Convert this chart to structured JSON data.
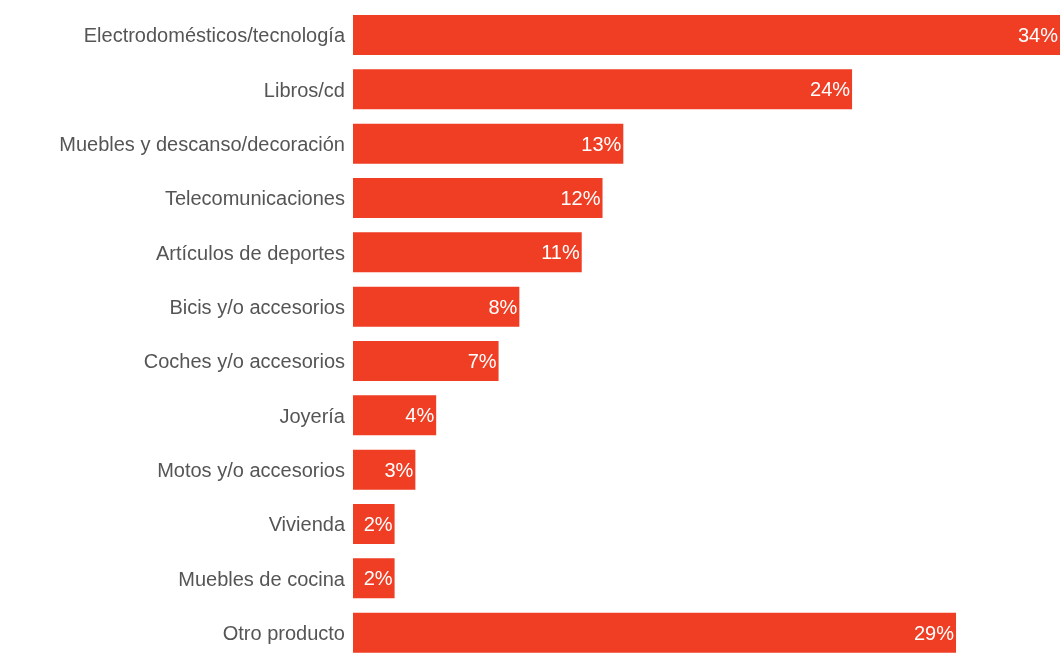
{
  "chart_data": {
    "type": "bar",
    "orientation": "horizontal",
    "categories": [
      "Electrodomésticos/tecnología",
      "Libros/cd",
      "Muebles y descanso/decoración",
      "Telecomunicaciones",
      "Artículos de deportes",
      "Bicis y/o accesorios",
      "Coches y/o accesorios",
      "Joyería",
      "Motos y/o accesorios",
      "Vivienda",
      "Muebles de cocina",
      "Otro producto"
    ],
    "values": [
      34,
      24,
      13,
      12,
      11,
      8,
      7,
      4,
      3,
      2,
      2,
      29
    ],
    "value_labels": [
      "34%",
      "24%",
      "13%",
      "12%",
      "11%",
      "8%",
      "7%",
      "4%",
      "3%",
      "2%",
      "2%",
      "29%"
    ],
    "color": "#ef3e23",
    "grid": false,
    "legend": false
  }
}
